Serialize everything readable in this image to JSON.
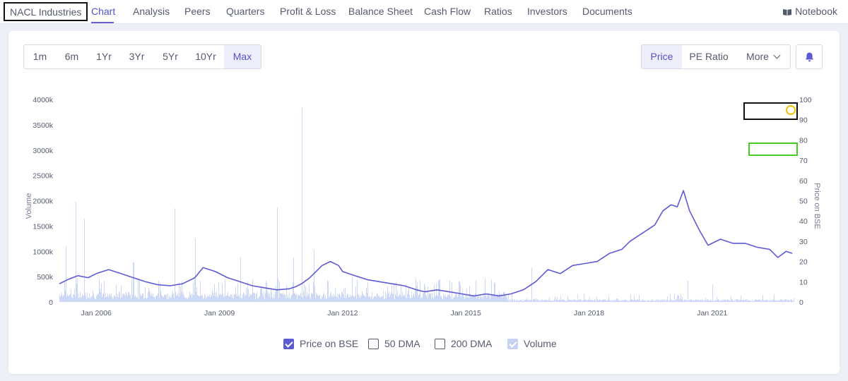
{
  "nav": {
    "company": "NACL Industries",
    "tabs": [
      "Chart",
      "Analysis",
      "Peers",
      "Quarters",
      "Profit & Loss",
      "Balance Sheet",
      "Cash Flow",
      "Ratios",
      "Investors",
      "Documents"
    ],
    "notebook": "Notebook"
  },
  "toolbar": {
    "ranges": [
      "1m",
      "6m",
      "1Yr",
      "3Yr",
      "5Yr",
      "10Yr",
      "Max"
    ],
    "selected_range": "Max",
    "metrics": [
      "Price",
      "PE Ratio",
      "More"
    ],
    "selected_metric": "Price"
  },
  "legend": {
    "items": [
      {
        "label": "Price on BSE",
        "checked": true
      },
      {
        "label": "50 DMA",
        "checked": false
      },
      {
        "label": "200 DMA",
        "checked": false
      },
      {
        "label": "Volume",
        "checked": true
      }
    ]
  },
  "colors": {
    "price_line": "#5e5ad6",
    "volume_bar": "#c6d4f4",
    "accent": "#5553c9",
    "annotation_black": "#111111",
    "annotation_green": "#44cc22",
    "annotation_yellow": "#f2c500"
  },
  "chart_data": {
    "type": "line",
    "x_tick_labels": [
      "Jan 2006",
      "Jan 2009",
      "Jan 2012",
      "Jan 2015",
      "Jan 2018",
      "Jan 2021"
    ],
    "left_axis": {
      "label": "Volume",
      "ticks": [
        "0",
        "500k",
        "1000k",
        "1500k",
        "2000k",
        "2500k",
        "3000k",
        "3500k",
        "4000k"
      ],
      "range": [
        0,
        4000000
      ]
    },
    "right_axis": {
      "label": "Price on BSE",
      "ticks": [
        "0",
        "10",
        "20",
        "30",
        "40",
        "50",
        "60",
        "70",
        "80",
        "90",
        "100"
      ],
      "range": [
        0,
        100
      ]
    },
    "x_range": [
      2005.1,
      2023.0
    ],
    "series": [
      {
        "name": "Price on BSE",
        "axis": "right",
        "points": [
          [
            2005.1,
            9
          ],
          [
            2005.3,
            11
          ],
          [
            2005.55,
            13
          ],
          [
            2005.8,
            12
          ],
          [
            2006.0,
            14
          ],
          [
            2006.3,
            16
          ],
          [
            2006.6,
            14
          ],
          [
            2006.9,
            12
          ],
          [
            2007.2,
            10
          ],
          [
            2007.5,
            8.5
          ],
          [
            2007.8,
            8
          ],
          [
            2008.1,
            9
          ],
          [
            2008.4,
            12
          ],
          [
            2008.6,
            17
          ],
          [
            2008.9,
            15
          ],
          [
            2009.2,
            12
          ],
          [
            2009.5,
            10
          ],
          [
            2009.8,
            8
          ],
          [
            2010.1,
            7
          ],
          [
            2010.4,
            6
          ],
          [
            2010.7,
            6.5
          ],
          [
            2010.85,
            7.5
          ],
          [
            2011.0,
            9
          ],
          [
            2011.2,
            12
          ],
          [
            2011.5,
            18
          ],
          [
            2011.7,
            20
          ],
          [
            2011.9,
            18
          ],
          [
            2012.0,
            15
          ],
          [
            2012.3,
            13
          ],
          [
            2012.6,
            11
          ],
          [
            2012.9,
            10
          ],
          [
            2013.2,
            9
          ],
          [
            2013.5,
            8
          ],
          [
            2013.8,
            6
          ],
          [
            2014.0,
            5
          ],
          [
            2014.3,
            6
          ],
          [
            2014.6,
            5
          ],
          [
            2014.9,
            4
          ],
          [
            2015.2,
            3
          ],
          [
            2015.5,
            4
          ],
          [
            2015.8,
            3
          ],
          [
            2016.1,
            4
          ],
          [
            2016.4,
            6
          ],
          [
            2016.7,
            10
          ],
          [
            2017.0,
            16
          ],
          [
            2017.3,
            14
          ],
          [
            2017.6,
            18
          ],
          [
            2017.9,
            19
          ],
          [
            2018.2,
            20
          ],
          [
            2018.5,
            24
          ],
          [
            2018.8,
            26
          ],
          [
            2019.0,
            30
          ],
          [
            2019.3,
            34
          ],
          [
            2019.6,
            38
          ],
          [
            2019.8,
            45
          ],
          [
            2020.0,
            48
          ],
          [
            2020.15,
            47
          ],
          [
            2020.3,
            55
          ],
          [
            2020.45,
            45
          ],
          [
            2020.7,
            35
          ],
          [
            2020.9,
            28
          ],
          [
            2021.2,
            31
          ],
          [
            2021.5,
            29
          ],
          [
            2021.8,
            29
          ],
          [
            2022.1,
            27
          ],
          [
            2022.4,
            26
          ],
          [
            2022.6,
            22
          ],
          [
            2022.8,
            25
          ],
          [
            2022.95,
            24
          ]
        ]
      },
      {
        "name": "Volume",
        "axis": "left",
        "type": "bar"
      }
    ]
  }
}
